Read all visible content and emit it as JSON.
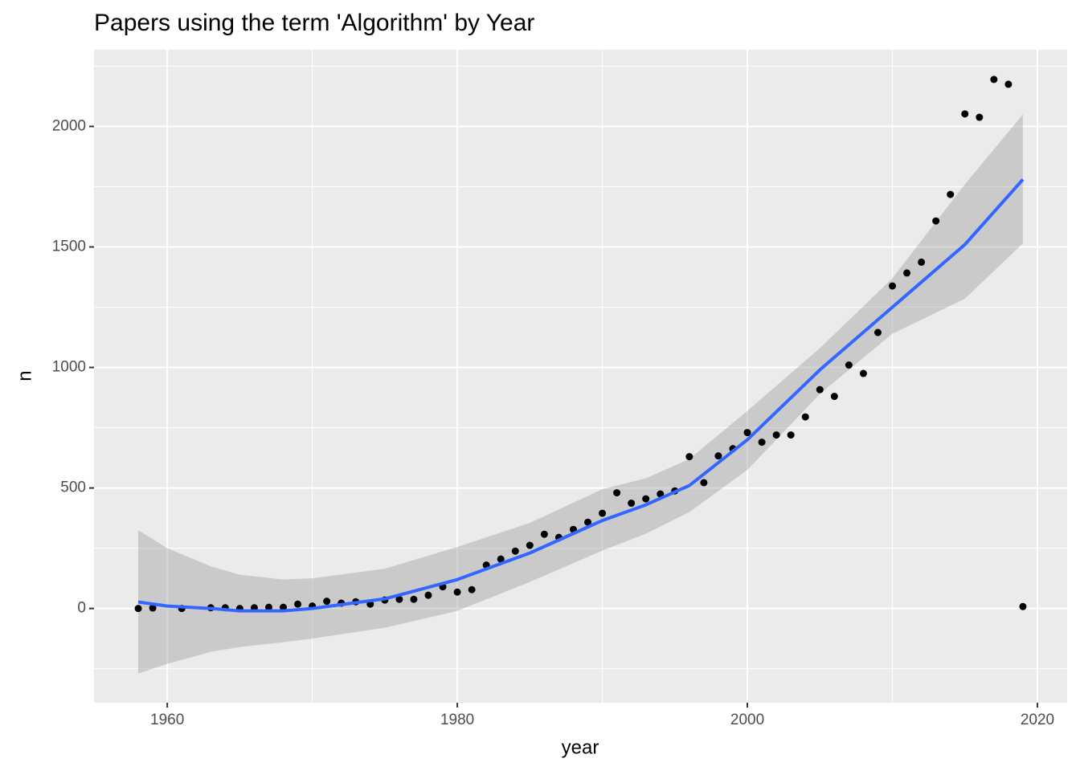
{
  "chart_data": {
    "type": "scatter",
    "title": "Papers using the term 'Algorithm' by Year",
    "x_label": "year",
    "y_label": "n",
    "x": [
      1958,
      1959,
      1961,
      1963,
      1964,
      1965,
      1966,
      1967,
      1968,
      1969,
      1970,
      1971,
      1972,
      1973,
      1974,
      1975,
      1976,
      1977,
      1978,
      1979,
      1980,
      1981,
      1982,
      1983,
      1984,
      1985,
      1986,
      1987,
      1988,
      1989,
      1990,
      1991,
      1992,
      1993,
      1994,
      1995,
      1996,
      1997,
      1998,
      1999,
      2000,
      2001,
      2002,
      2003,
      2004,
      2005,
      2006,
      2007,
      2008,
      2009,
      2010,
      2011,
      2012,
      2013,
      2014,
      2015,
      2016,
      2017,
      2018,
      2019
    ],
    "values": [
      0,
      2,
      0,
      3,
      3,
      0,
      3,
      5,
      5,
      18,
      10,
      30,
      22,
      28,
      18,
      35,
      38,
      38,
      55,
      90,
      68,
      78,
      180,
      205,
      238,
      262,
      308,
      295,
      328,
      358,
      395,
      480,
      437,
      455,
      475,
      488,
      630,
      522,
      633,
      663,
      730,
      690,
      720,
      720,
      795,
      908,
      880,
      1010,
      975,
      1145,
      1338,
      1392,
      1437,
      1608,
      1718,
      2052,
      2038,
      2195,
      2175,
      8
    ],
    "color": "#000000",
    "smooth": {
      "x": [
        1958,
        1960,
        1963,
        1965,
        1968,
        1970,
        1975,
        1980,
        1985,
        1990,
        1993,
        1996,
        2000,
        2005,
        2010,
        2015,
        2019
      ],
      "values": [
        27,
        10,
        0,
        -10,
        -10,
        0,
        40,
        120,
        230,
        365,
        430,
        510,
        700,
        990,
        1250,
        1510,
        1780
      ],
      "upper": [
        325,
        250,
        175,
        140,
        120,
        125,
        165,
        255,
        355,
        495,
        540,
        620,
        820,
        1080,
        1370,
        1760,
        2050
      ],
      "lower": [
        -270,
        -230,
        -180,
        -160,
        -140,
        -125,
        -80,
        -10,
        110,
        240,
        310,
        400,
        575,
        890,
        1140,
        1285,
        1515
      ],
      "color": "#3366ff",
      "band_color": "#999999"
    },
    "xlim": [
      1954.95,
      2022.05
    ],
    "ylim": [
      -391,
      2318
    ],
    "xticks": [
      1960,
      1980,
      2000,
      2020
    ],
    "yticks": [
      0,
      500,
      1000,
      1500,
      2000
    ],
    "minor_xticks": [
      1970,
      1990,
      2010
    ],
    "minor_yticks": [
      -250,
      250,
      750,
      1250,
      1750,
      2250
    ],
    "grid": true
  }
}
